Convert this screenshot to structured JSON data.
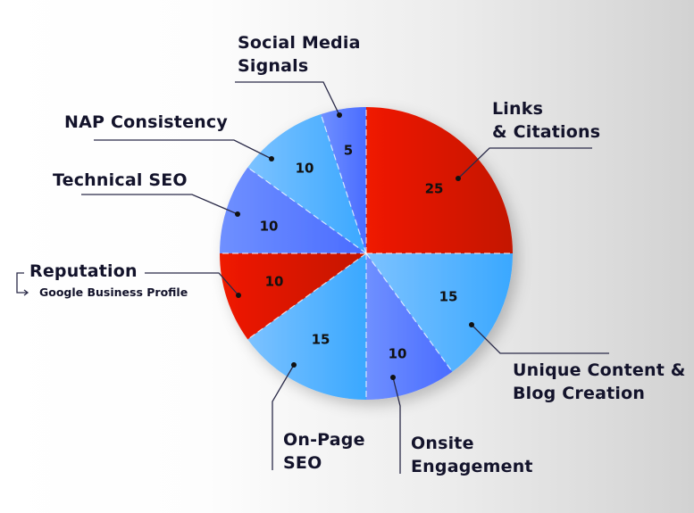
{
  "chart_data": {
    "type": "pie",
    "title": "",
    "start_angle_deg": 0,
    "direction": "clockwise",
    "categories": [
      "Links & Citations",
      "Unique Content & Blog Creation",
      "Onsite Engagement",
      "On-Page SEO",
      "Reputation (Google Business Profile)",
      "Technical SEO",
      "NAP Consistency",
      "Social Media Signals"
    ],
    "values": [
      25,
      15,
      10,
      15,
      10,
      10,
      10,
      5
    ],
    "colors": [
      "#e01a0a",
      "#4db0ff",
      "#5c80ff",
      "#4db0ff",
      "#e01a0a",
      "#5c80ff",
      "#4db0ff",
      "#5c80ff"
    ],
    "value_labels": [
      "25",
      "15",
      "10",
      "15",
      "10",
      "10",
      "10",
      "5"
    ],
    "legend": "none (leader-line callouts)"
  },
  "labels": {
    "links": "Links\n& Citations",
    "unique": "Unique Content &\nBlog Creation",
    "onsite": "Onsite\nEngagement",
    "onpage": "On-Page\nSEO",
    "reputation": "Reputation",
    "reputation_sub": "Google Business Profile",
    "technical": "Technical SEO",
    "nap": "NAP Consistency",
    "social": "Social Media\nSignals"
  },
  "colors": {
    "red": "#e01a0a",
    "red_dark": "#c81204",
    "light_blue": "#4db0ff",
    "light_blue_soft": "#74bfff",
    "purple_blue": "#5c80ff",
    "purple_blue_soft": "#6c8cff",
    "text": "#13132b",
    "leader": "#2a2a48"
  }
}
